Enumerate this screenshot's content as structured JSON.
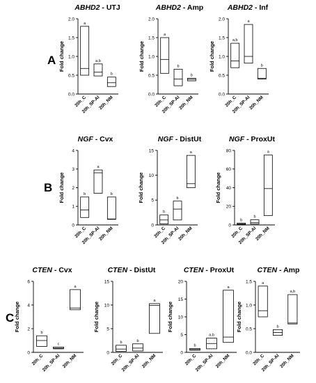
{
  "chart_data": [
    {
      "type": "box",
      "panel": "A",
      "gene": "ABHD2",
      "tissue": "UTJ",
      "ylabel": "Fold change",
      "ylim": [
        0,
        2.0
      ],
      "yticks": [
        0.0,
        0.5,
        1.0,
        1.5,
        2.0
      ],
      "ytick_labels": [
        "0.0",
        "0.5",
        "1.0",
        "1.5",
        "2.0"
      ],
      "categories": [
        "20h_C",
        "20h_SP-AI",
        "20h_NM"
      ],
      "boxes": [
        {
          "min": 0.5,
          "median": 0.68,
          "max": 1.8,
          "sig": "a"
        },
        {
          "min": 0.48,
          "median": 0.58,
          "max": 0.8,
          "sig": "a,b"
        },
        {
          "min": 0.2,
          "median": 0.3,
          "max": 0.45,
          "sig": "b"
        }
      ]
    },
    {
      "type": "box",
      "panel": "A",
      "gene": "ABHD2",
      "tissue": "Amp",
      "ylabel": "Fold change",
      "ylim": [
        0,
        2.0
      ],
      "yticks": [
        0.0,
        0.5,
        1.0,
        1.5,
        2.0
      ],
      "ytick_labels": [
        "0.0",
        "0.5",
        "1.0",
        "1.5",
        "2.0"
      ],
      "categories": [
        "20h_C",
        "20h_SP-AI",
        "20h_NM"
      ],
      "boxes": [
        {
          "min": 0.55,
          "median": 0.92,
          "max": 1.5,
          "sig": "a"
        },
        {
          "min": 0.22,
          "median": 0.4,
          "max": 0.66,
          "sig": "b"
        },
        {
          "min": 0.35,
          "median": 0.39,
          "max": 0.42,
          "sig": "b"
        }
      ]
    },
    {
      "type": "box",
      "panel": "A",
      "gene": "ABHD2",
      "tissue": "Inf",
      "ylabel": "Fold change",
      "ylim": [
        0,
        2.0
      ],
      "yticks": [
        0.0,
        0.5,
        1.0,
        1.5,
        2.0
      ],
      "ytick_labels": [
        "0.0",
        "0.5",
        "1.0",
        "1.5",
        "2.0"
      ],
      "categories": [
        "20h_C",
        "20h_SP-AI",
        "20h_NM"
      ],
      "boxes": [
        {
          "min": 0.7,
          "median": 0.88,
          "max": 1.35,
          "sig": "a,b"
        },
        {
          "min": 0.82,
          "median": 1.0,
          "max": 1.85,
          "sig": "a"
        },
        {
          "min": 0.4,
          "median": 0.42,
          "max": 0.68,
          "sig": "b"
        }
      ]
    },
    {
      "type": "box",
      "panel": "B",
      "gene": "NGF",
      "tissue": "Cvx",
      "ylabel": "Fold change",
      "ylim": [
        0,
        4
      ],
      "yticks": [
        0,
        1,
        2,
        3,
        4
      ],
      "ytick_labels": [
        "0",
        "1",
        "2",
        "3",
        "4"
      ],
      "categories": [
        "20h_C",
        "20h_SP-AI",
        "20h_NM"
      ],
      "boxes": [
        {
          "min": 0.4,
          "median": 0.8,
          "max": 1.5,
          "sig": "b"
        },
        {
          "min": 1.7,
          "median": 2.8,
          "max": 2.95,
          "sig": "a"
        },
        {
          "min": 0.3,
          "median": 0.32,
          "max": 1.5,
          "sig": "b"
        }
      ]
    },
    {
      "type": "box",
      "panel": "B",
      "gene": "NGF",
      "tissue": "DistUt",
      "ylabel": "Fold change",
      "ylim": [
        0,
        15
      ],
      "yticks": [
        0,
        5,
        10,
        15
      ],
      "ytick_labels": [
        "0",
        "5",
        "10",
        "15"
      ],
      "categories": [
        "20h_C",
        "20h_SP-AI",
        "20h_NM"
      ],
      "boxes": [
        {
          "min": 0.2,
          "median": 1.0,
          "max": 2.0,
          "sig": "b"
        },
        {
          "min": 1.0,
          "median": 3.2,
          "max": 4.8,
          "sig": "b"
        },
        {
          "min": 7.5,
          "median": 8.3,
          "max": 14.0,
          "sig": "a"
        }
      ]
    },
    {
      "type": "box",
      "panel": "B",
      "gene": "NGF",
      "tissue": "ProxUt",
      "ylabel": "Fold change",
      "ylim": [
        0,
        80
      ],
      "yticks": [
        0,
        20,
        40,
        60,
        80
      ],
      "ytick_labels": [
        "0",
        "20",
        "40",
        "60",
        "80"
      ],
      "categories": [
        "20h_C",
        "20h_SP-AI",
        "20h_NM"
      ],
      "boxes": [
        {
          "min": 0.5,
          "median": 1.0,
          "max": 2.0,
          "sig": "b"
        },
        {
          "min": 1.0,
          "median": 2.5,
          "max": 5.5,
          "sig": "b"
        },
        {
          "min": 10,
          "median": 39,
          "max": 75,
          "sig": "a"
        }
      ]
    },
    {
      "type": "box",
      "panel": "C",
      "gene": "CTEN",
      "tissue": "Cvx",
      "ylabel": "Fold change",
      "ylim": [
        0,
        6
      ],
      "yticks": [
        0,
        2,
        4,
        6
      ],
      "ytick_labels": [
        "0",
        "2",
        "4",
        "6"
      ],
      "categories": [
        "20h_C",
        "20h_SP-AI",
        "20h_NM"
      ],
      "boxes": [
        {
          "min": 0.5,
          "median": 1.0,
          "max": 1.4,
          "sig": "b"
        },
        {
          "min": 0.3,
          "median": 0.35,
          "max": 0.45,
          "sig": "c"
        },
        {
          "min": 3.6,
          "median": 3.75,
          "max": 5.3,
          "sig": "a"
        }
      ]
    },
    {
      "type": "box",
      "panel": "C",
      "gene": "CTEN",
      "tissue": "DistUt",
      "ylabel": "Fold change",
      "ylim": [
        0,
        15
      ],
      "yticks": [
        0,
        5,
        10,
        15
      ],
      "ytick_labels": [
        "0",
        "5",
        "10",
        "15"
      ],
      "categories": [
        "20h_C",
        "20h_SP-AI",
        "20h_NM"
      ],
      "boxes": [
        {
          "min": 0.2,
          "median": 0.7,
          "max": 1.5,
          "sig": "b"
        },
        {
          "min": 0.3,
          "median": 0.9,
          "max": 1.8,
          "sig": "b"
        },
        {
          "min": 4.0,
          "median": 9.9,
          "max": 10.3,
          "sig": "a"
        }
      ]
    },
    {
      "type": "box",
      "panel": "C",
      "gene": "CTEN",
      "tissue": "ProxUt",
      "ylabel": "Fold change",
      "ylim": [
        0,
        20
      ],
      "yticks": [
        0,
        5,
        10,
        15,
        20
      ],
      "ytick_labels": [
        "0",
        "5",
        "10",
        "15",
        "20"
      ],
      "categories": [
        "20h_C",
        "20h_SP-AI",
        "20h_NM"
      ],
      "boxes": [
        {
          "min": 0.6,
          "median": 0.8,
          "max": 1.1,
          "sig": "b"
        },
        {
          "min": 1.0,
          "median": 2.5,
          "max": 4.0,
          "sig": "a,b"
        },
        {
          "min": 2.8,
          "median": 4.3,
          "max": 17.5,
          "sig": "a"
        }
      ]
    },
    {
      "type": "box",
      "panel": "C",
      "gene": "CTEN",
      "tissue": "Amp",
      "ylabel": "Fold change",
      "ylim": [
        0,
        1.5
      ],
      "yticks": [
        0.0,
        0.5,
        1.0,
        1.5
      ],
      "ytick_labels": [
        "0.0",
        "0.5",
        "1.0",
        "1.5"
      ],
      "categories": [
        "20h_C",
        "20h_SP-AI",
        "20h_NM"
      ],
      "boxes": [
        {
          "min": 0.75,
          "median": 0.88,
          "max": 1.4,
          "sig": "a"
        },
        {
          "min": 0.36,
          "median": 0.42,
          "max": 0.48,
          "sig": "b"
        },
        {
          "min": 0.6,
          "median": 0.62,
          "max": 1.22,
          "sig": "a,b"
        }
      ]
    }
  ]
}
